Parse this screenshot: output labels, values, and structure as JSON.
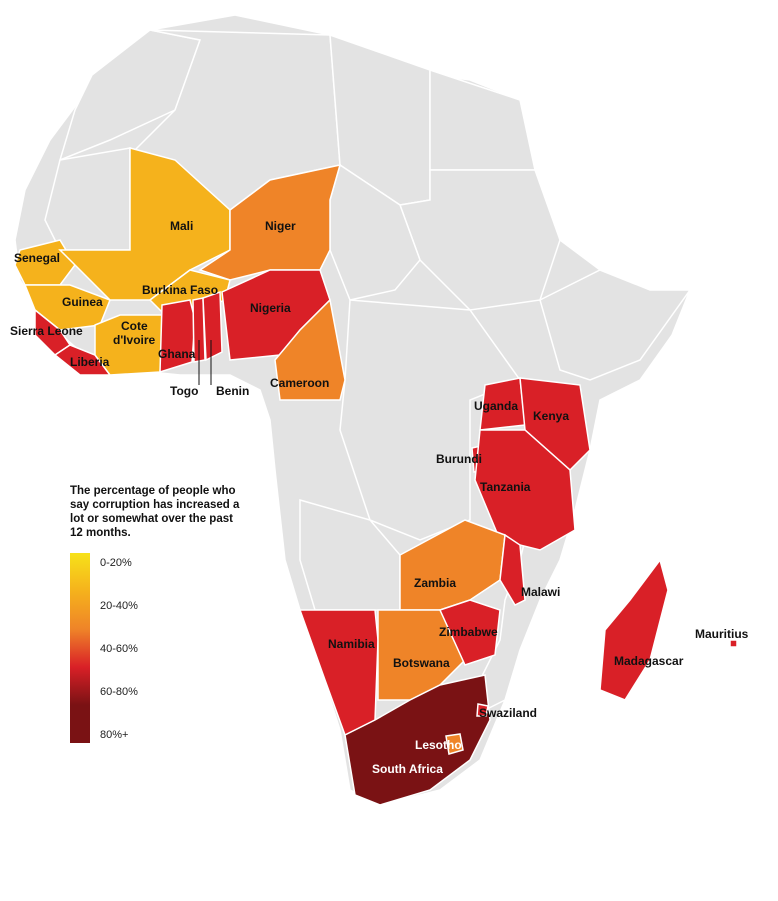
{
  "legend": {
    "title": "The percentage of people who say corruption has increased a lot or somewhat over the past 12 months.",
    "bins": [
      {
        "label": "0-20%",
        "color": "#f7e21a"
      },
      {
        "label": "20-40%",
        "color": "#f5b21c"
      },
      {
        "label": "40-60%",
        "color": "#ef8428"
      },
      {
        "label": "60-80%",
        "color": "#d92027"
      },
      {
        "label": "80%+",
        "color": "#7a1214"
      }
    ]
  },
  "colors": {
    "no_data": "#e3e3e3",
    "border": "#ffffff"
  },
  "countries": [
    {
      "name": "Senegal",
      "bin": "20-40%"
    },
    {
      "name": "Mali",
      "bin": "20-40%"
    },
    {
      "name": "Niger",
      "bin": "40-60%"
    },
    {
      "name": "Guinea",
      "bin": "20-40%"
    },
    {
      "name": "Burkina Faso",
      "bin": "20-40%"
    },
    {
      "name": "Sierra Leone",
      "bin": "60-80%"
    },
    {
      "name": "Cote d'Ivoire",
      "bin": "20-40%"
    },
    {
      "name": "Liberia",
      "bin": "60-80%"
    },
    {
      "name": "Ghana",
      "bin": "60-80%"
    },
    {
      "name": "Togo",
      "bin": "60-80%"
    },
    {
      "name": "Benin",
      "bin": "60-80%"
    },
    {
      "name": "Nigeria",
      "bin": "60-80%"
    },
    {
      "name": "Cameroon",
      "bin": "40-60%"
    },
    {
      "name": "Uganda",
      "bin": "60-80%"
    },
    {
      "name": "Kenya",
      "bin": "60-80%"
    },
    {
      "name": "Burundi",
      "bin": "60-80%"
    },
    {
      "name": "Tanzania",
      "bin": "60-80%"
    },
    {
      "name": "Zambia",
      "bin": "40-60%"
    },
    {
      "name": "Malawi",
      "bin": "60-80%"
    },
    {
      "name": "Zimbabwe",
      "bin": "60-80%"
    },
    {
      "name": "Namibia",
      "bin": "60-80%"
    },
    {
      "name": "Botswana",
      "bin": "40-60%"
    },
    {
      "name": "Mauritius",
      "bin": "60-80%"
    },
    {
      "name": "Madagascar",
      "bin": "60-80%"
    },
    {
      "name": "Swaziland",
      "bin": "60-80%"
    },
    {
      "name": "Lesotho",
      "bin": "40-60%"
    },
    {
      "name": "South Africa",
      "bin": "80%+"
    }
  ]
}
